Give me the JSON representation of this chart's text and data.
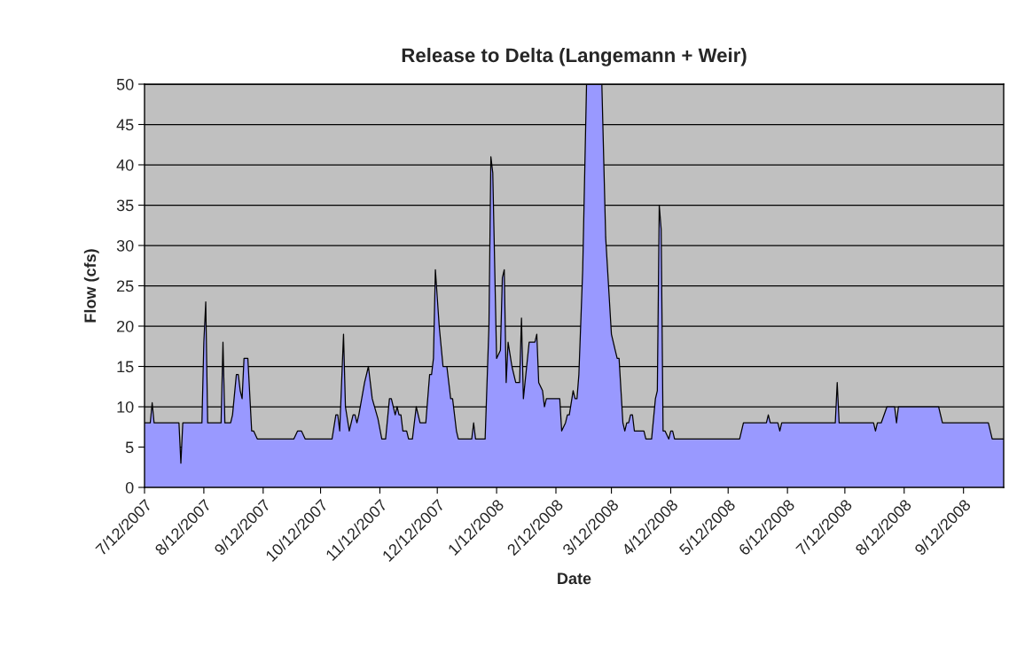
{
  "chart_data": {
    "type": "area",
    "title": "Release to Delta (Langemann + Weir)",
    "xlabel": "Date",
    "ylabel": "Flow (cfs)",
    "x": [
      "2007-07-12",
      "2007-07-15",
      "2007-07-16",
      "2007-07-17",
      "2007-07-30",
      "2007-07-31",
      "2007-08-01",
      "2007-08-11",
      "2007-08-12",
      "2007-08-13",
      "2007-08-14",
      "2007-08-21",
      "2007-08-22",
      "2007-08-23",
      "2007-08-26",
      "2007-08-27",
      "2007-08-29",
      "2007-08-30",
      "2007-08-31",
      "2007-09-01",
      "2007-09-02",
      "2007-09-04",
      "2007-09-06",
      "2007-09-07",
      "2007-09-09",
      "2007-09-28",
      "2007-09-30",
      "2007-10-02",
      "2007-10-04",
      "2007-10-18",
      "2007-10-20",
      "2007-10-21",
      "2007-10-22",
      "2007-10-24",
      "2007-10-25",
      "2007-10-27",
      "2007-10-29",
      "2007-10-30",
      "2007-10-31",
      "2007-11-01",
      "2007-11-04",
      "2007-11-06",
      "2007-11-08",
      "2007-11-11",
      "2007-11-13",
      "2007-11-15",
      "2007-11-17",
      "2007-11-18",
      "2007-11-20",
      "2007-11-21",
      "2007-11-22",
      "2007-11-23",
      "2007-11-24",
      "2007-11-26",
      "2007-11-27",
      "2007-11-29",
      "2007-12-01",
      "2007-12-03",
      "2007-12-06",
      "2007-12-08",
      "2007-12-09",
      "2007-12-10",
      "2007-12-11",
      "2007-12-13",
      "2007-12-15",
      "2007-12-17",
      "2007-12-19",
      "2007-12-20",
      "2007-12-22",
      "2007-12-23",
      "2007-12-30",
      "2007-12-31",
      "2008-01-01",
      "2008-01-06",
      "2008-01-08",
      "2008-01-09",
      "2008-01-10",
      "2008-01-12",
      "2008-01-14",
      "2008-01-15",
      "2008-01-16",
      "2008-01-17",
      "2008-01-18",
      "2008-01-20",
      "2008-01-22",
      "2008-01-24",
      "2008-01-25",
      "2008-01-26",
      "2008-01-29",
      "2008-02-01",
      "2008-02-02",
      "2008-02-03",
      "2008-02-05",
      "2008-02-06",
      "2008-02-07",
      "2008-02-14",
      "2008-02-15",
      "2008-02-17",
      "2008-02-18",
      "2008-02-19",
      "2008-02-21",
      "2008-02-22",
      "2008-02-23",
      "2008-02-24",
      "2008-02-26",
      "2008-02-28",
      "2008-03-07",
      "2008-03-09",
      "2008-03-11",
      "2008-03-12",
      "2008-03-14",
      "2008-03-15",
      "2008-03-16",
      "2008-03-18",
      "2008-03-19",
      "2008-03-20",
      "2008-03-21",
      "2008-03-22",
      "2008-03-23",
      "2008-03-24",
      "2008-03-29",
      "2008-03-30",
      "2008-04-02",
      "2008-04-04",
      "2008-04-05",
      "2008-04-06",
      "2008-04-07",
      "2008-04-08",
      "2008-04-09",
      "2008-04-11",
      "2008-04-12",
      "2008-04-13",
      "2008-04-14",
      "2008-05-18",
      "2008-05-20",
      "2008-06-01",
      "2008-06-02",
      "2008-06-03",
      "2008-06-07",
      "2008-06-08",
      "2008-06-09",
      "2008-07-07",
      "2008-07-08",
      "2008-07-09",
      "2008-07-27",
      "2008-07-28",
      "2008-07-29",
      "2008-07-31",
      "2008-08-03",
      "2008-08-07",
      "2008-08-08",
      "2008-08-09",
      "2008-08-30",
      "2008-09-01",
      "2008-09-25",
      "2008-09-27",
      "2008-10-03"
    ],
    "series": [
      {
        "color": "#9999ff",
        "values": [
          8,
          8,
          10.5,
          8,
          8,
          3,
          8,
          8,
          18,
          23,
          8,
          8,
          18,
          8,
          8,
          9,
          14,
          14,
          12,
          11,
          16,
          16,
          7,
          7,
          6,
          6,
          7,
          7,
          6,
          6,
          9,
          9,
          7,
          19,
          10,
          7,
          9,
          9,
          8,
          9,
          13,
          15,
          11,
          8.5,
          6,
          6,
          11,
          11,
          9,
          10,
          9,
          9,
          7,
          7,
          6,
          6,
          10,
          8,
          8,
          14,
          14,
          16,
          27,
          20,
          15,
          15,
          11,
          11,
          7,
          6,
          6,
          8,
          6,
          6,
          20,
          41,
          39,
          16,
          17,
          26,
          27,
          13,
          18,
          15,
          13,
          13,
          21,
          11,
          18,
          18,
          19,
          13,
          12,
          10,
          11,
          11,
          7,
          8,
          9,
          9,
          12,
          11,
          11,
          14,
          27,
          50,
          50,
          31,
          23,
          19,
          17,
          16,
          16,
          8,
          7,
          8,
          8,
          9,
          9,
          7,
          7,
          6,
          6,
          11,
          12,
          35,
          32,
          7,
          7,
          6,
          7,
          7,
          6,
          6,
          8,
          8,
          9,
          8,
          8,
          7,
          8,
          8,
          13,
          8,
          8,
          7,
          8,
          8,
          10,
          10,
          8,
          10,
          10,
          8,
          8,
          6,
          6
        ]
      }
    ],
    "xlim": [
      "2007-07-12",
      "2008-10-03"
    ],
    "xticks": [
      {
        "value": "2007-07-12",
        "label": "7/12/2007"
      },
      {
        "value": "2007-08-12",
        "label": "8/12/2007"
      },
      {
        "value": "2007-09-12",
        "label": "9/12/2007"
      },
      {
        "value": "2007-10-12",
        "label": "10/12/2007"
      },
      {
        "value": "2007-11-12",
        "label": "11/12/2007"
      },
      {
        "value": "2007-12-12",
        "label": "12/12/2007"
      },
      {
        "value": "2008-01-12",
        "label": "1/12/2008"
      },
      {
        "value": "2008-02-12",
        "label": "2/12/2008"
      },
      {
        "value": "2008-03-12",
        "label": "3/12/2008"
      },
      {
        "value": "2008-04-12",
        "label": "4/12/2008"
      },
      {
        "value": "2008-05-12",
        "label": "5/12/2008"
      },
      {
        "value": "2008-06-12",
        "label": "6/12/2008"
      },
      {
        "value": "2008-07-12",
        "label": "7/12/2008"
      },
      {
        "value": "2008-08-12",
        "label": "8/12/2008"
      },
      {
        "value": "2008-09-12",
        "label": "9/12/2008"
      }
    ],
    "ylim": [
      0,
      50
    ],
    "yticks": [
      0,
      5,
      10,
      15,
      20,
      25,
      30,
      35,
      40,
      45,
      50
    ],
    "grid": "y",
    "legend": false
  }
}
